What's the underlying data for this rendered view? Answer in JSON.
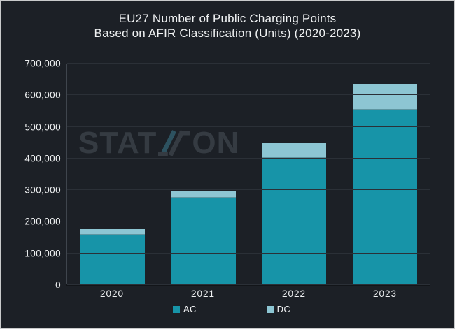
{
  "title": {
    "line1": "EU27 Number of Public Charging Points",
    "line2": "Based on AFIR Classification (Units) (2020-2023)"
  },
  "watermark": {
    "pre": "STAT",
    "post": "ON"
  },
  "colors": {
    "background": "#1c2026",
    "frame": "#c9cacb",
    "text": "#eff1f2",
    "grid": "#2b3037",
    "axis": "#3f454d",
    "baseline": "#121519",
    "ac": "#1794a8",
    "dc": "#8dc6d3",
    "watermark": "#353b42",
    "watermark_z": "#2d5260"
  },
  "chart_data": {
    "type": "bar",
    "stacked": true,
    "title": "EU27 Number of Public Charging Points Based on AFIR Classification (Units) (2020-2023)",
    "categories": [
      "2020",
      "2021",
      "2022",
      "2023"
    ],
    "series": [
      {
        "name": "AC",
        "color_key": "ac",
        "values": [
          158000,
          276000,
          403000,
          554000
        ]
      },
      {
        "name": "DC",
        "color_key": "dc",
        "values": [
          19000,
          23000,
          45000,
          83000
        ]
      }
    ],
    "totals": [
      177000,
      299000,
      448000,
      637000
    ],
    "xlabel": "",
    "ylabel": "",
    "ylim": [
      0,
      700000
    ],
    "ytick_step": 100000,
    "ytick_labels": [
      "0",
      "100,000",
      "200,000",
      "300,000",
      "400,000",
      "500,000",
      "600,000",
      "700,000"
    ],
    "grid": true,
    "legend_position": "bottom"
  }
}
